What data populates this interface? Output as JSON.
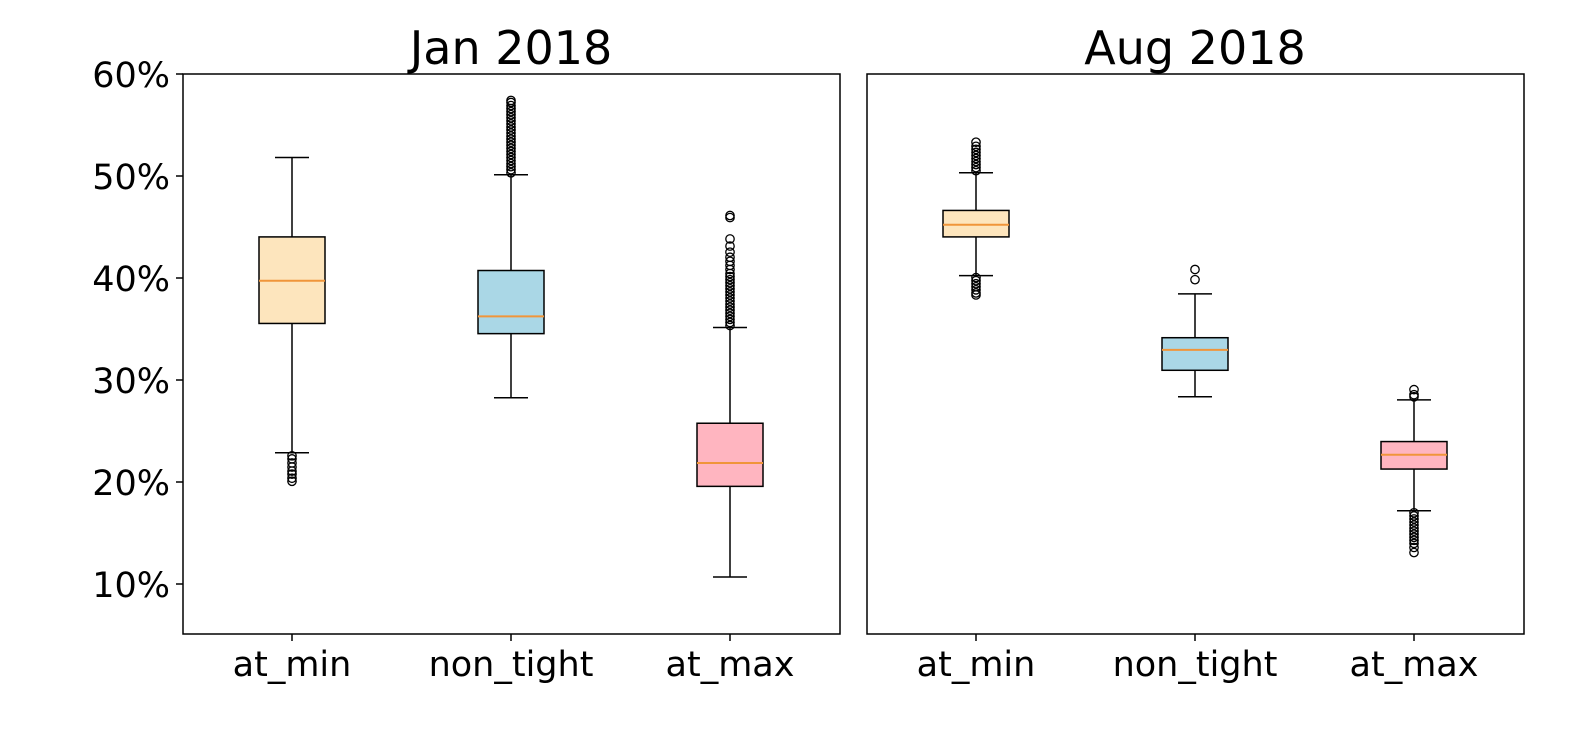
{
  "chart_data": {
    "type": "boxplot",
    "y_scale": "percent",
    "ylim": [
      5,
      60
    ],
    "yticks": [
      10,
      20,
      30,
      40,
      50,
      60
    ],
    "ytick_labels": [
      "10%",
      "20%",
      "30%",
      "40%",
      "50%",
      "60%"
    ],
    "shared_y": true,
    "grid": false,
    "median_color": "#f0953a",
    "panels": [
      {
        "title": "Jan 2018",
        "categories": [
          "at_min",
          "non_tight",
          "at_max"
        ],
        "boxes": [
          {
            "category": "at_min",
            "color": "#fde5bd",
            "whisker_low": 22.8,
            "q1": 35.5,
            "median": 39.7,
            "q3": 44.0,
            "whisker_high": 51.8,
            "fliers": [
              22.5,
              22.2,
              21.8,
              21.4,
              21.0,
              20.7,
              20.3,
              20.0
            ]
          },
          {
            "category": "non_tight",
            "color": "#aad7e6",
            "whisker_low": 28.2,
            "q1": 34.5,
            "median": 36.2,
            "q3": 40.7,
            "whisker_high": 50.1,
            "fliers": [
              50.3,
              50.6,
              50.9,
              51.2,
              51.5,
              51.8,
              52.1,
              52.4,
              52.7,
              53.0,
              53.3,
              53.6,
              53.9,
              54.2,
              54.5,
              54.8,
              55.1,
              55.4,
              55.7,
              56.0,
              56.3,
              56.6,
              56.9,
              57.2,
              57.4
            ]
          },
          {
            "category": "at_max",
            "color": "#ffb5c0",
            "whisker_low": 10.6,
            "q1": 19.5,
            "median": 21.8,
            "q3": 25.7,
            "whisker_high": 35.1,
            "fliers": [
              35.3,
              35.6,
              35.9,
              36.2,
              36.5,
              36.8,
              37.1,
              37.4,
              37.7,
              38.0,
              38.3,
              38.6,
              38.9,
              39.2,
              39.5,
              39.8,
              40.1,
              40.4,
              40.8,
              41.2,
              41.6,
              42.0,
              42.5,
              43.1,
              43.8,
              45.9,
              46.1
            ]
          }
        ]
      },
      {
        "title": "Aug 2018",
        "categories": [
          "at_min",
          "non_tight",
          "at_max"
        ],
        "boxes": [
          {
            "category": "at_min",
            "color": "#fde5bd",
            "whisker_low": 40.2,
            "q1": 44.0,
            "median": 45.2,
            "q3": 46.6,
            "whisker_high": 50.3,
            "fliers": [
              40.0,
              39.7,
              39.4,
              39.1,
              38.8,
              38.5,
              38.3,
              50.5,
              50.8,
              51.1,
              51.4,
              51.7,
              52.0,
              52.3,
              52.6,
              52.9,
              53.3
            ]
          },
          {
            "category": "non_tight",
            "color": "#aad7e6",
            "whisker_low": 28.3,
            "q1": 30.9,
            "median": 32.9,
            "q3": 34.1,
            "whisker_high": 38.4,
            "fliers": [
              39.8,
              40.8
            ]
          },
          {
            "category": "at_max",
            "color": "#ffb5c0",
            "whisker_low": 17.1,
            "q1": 21.2,
            "median": 22.6,
            "q3": 23.9,
            "whisker_high": 28.0,
            "fliers": [
              16.9,
              16.6,
              16.3,
              16.0,
              15.7,
              15.4,
              15.1,
              14.8,
              14.5,
              14.2,
              13.9,
              13.5,
              13.0,
              28.3,
              28.5,
              29.0
            ]
          }
        ]
      }
    ]
  }
}
